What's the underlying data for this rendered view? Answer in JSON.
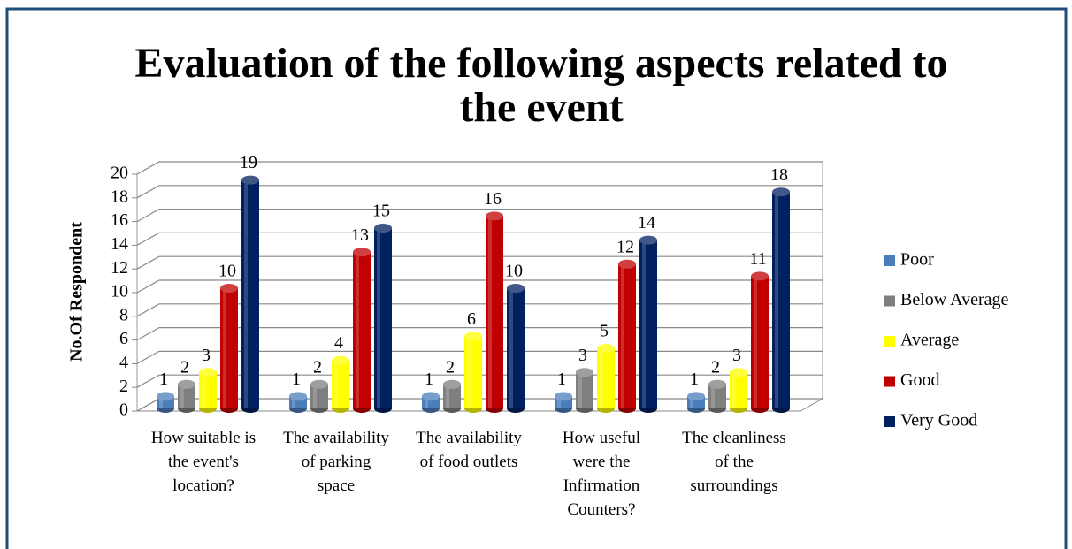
{
  "chart_data": {
    "type": "bar3d",
    "title": "Evaluation of the following aspects related to the event",
    "y_label": "No.Of Respondent",
    "categories": [
      "How suitable is the event's location?",
      "The availability of parking space",
      "The availability of food outlets",
      "How useful were the Infirmation Counters?",
      "The cleanliness of the surroundings"
    ],
    "series": [
      {
        "name": "Poor",
        "color": "#4a7ebb",
        "values": [
          1,
          1,
          1,
          1,
          1
        ]
      },
      {
        "name": "Below Average",
        "color": "#7f7f7f",
        "values": [
          2,
          2,
          2,
          3,
          2
        ]
      },
      {
        "name": "Average",
        "color": "#ffff00",
        "values": [
          3,
          4,
          6,
          5,
          3
        ]
      },
      {
        "name": "Good",
        "color": "#c00000",
        "values": [
          10,
          13,
          16,
          12,
          11
        ]
      },
      {
        "name": "Very Good",
        "color": "#002060",
        "values": [
          19,
          15,
          10,
          14,
          18
        ]
      }
    ],
    "ylim": [
      0,
      20
    ],
    "yticks": [
      0,
      2,
      4,
      6,
      8,
      10,
      12,
      14,
      16,
      18,
      20
    ],
    "grid": true,
    "legend": "right"
  }
}
